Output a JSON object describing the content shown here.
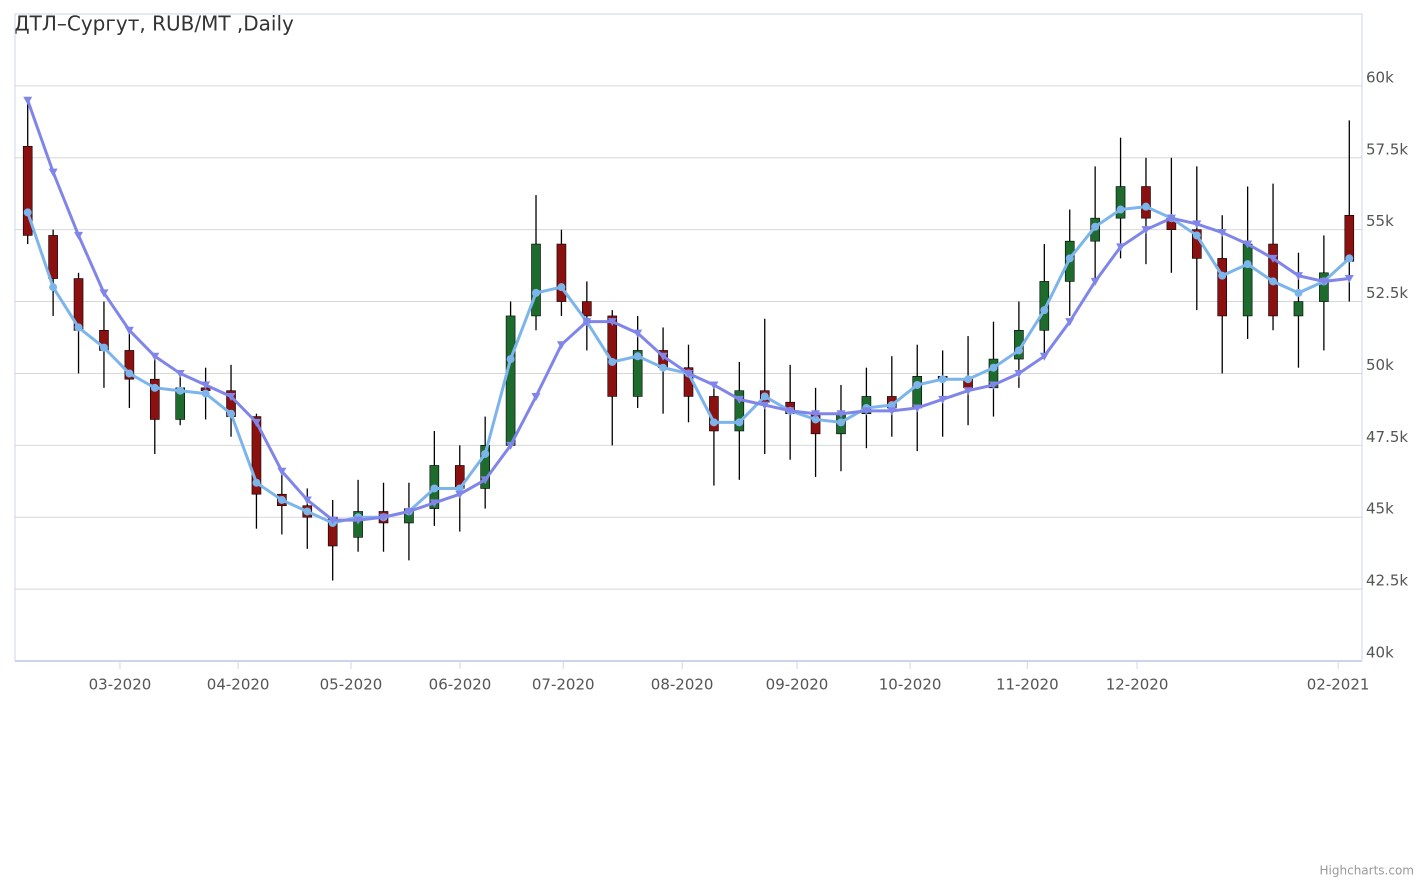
{
  "chart_data": {
    "type": "candlestick",
    "title": "ДТЛ–Сургут, RUB/MT ,Daily",
    "credits": "Highcharts.com",
    "categories": [
      null,
      null,
      null,
      null,
      null,
      null,
      null,
      null,
      null,
      null,
      null,
      null,
      null,
      null,
      null,
      null,
      null,
      null,
      null,
      null,
      null,
      null,
      null,
      null,
      null,
      null,
      null,
      null,
      null,
      null,
      null,
      null,
      null,
      null,
      null,
      null,
      null,
      null,
      null,
      null,
      null,
      null,
      null,
      null,
      null,
      null,
      null,
      null,
      null,
      null,
      null,
      null,
      null
    ],
    "open": [
      57900,
      54800,
      53300,
      51500,
      50800,
      49800,
      48400,
      49500,
      49400,
      48500,
      45800,
      45400,
      45000,
      44300,
      45200,
      44800,
      45300,
      46800,
      46000,
      47500,
      52000,
      54500,
      52500,
      52000,
      49200,
      50800,
      50200,
      49200,
      48000,
      49400,
      49000,
      48600,
      47900,
      48600,
      49200,
      48800,
      49900,
      49800,
      49500,
      50500,
      51500,
      53200,
      54600,
      55400,
      56500,
      55400,
      55000,
      54000,
      52000,
      54500,
      52000,
      52500,
      55500
    ],
    "high": [
      59500,
      55000,
      53500,
      52500,
      51500,
      50500,
      50000,
      50200,
      50300,
      48600,
      46600,
      46000,
      45600,
      46300,
      46200,
      46200,
      48000,
      47500,
      48500,
      52500,
      56200,
      55000,
      53200,
      52200,
      52000,
      51600,
      51000,
      49600,
      50400,
      51900,
      50300,
      49500,
      49600,
      50200,
      50600,
      51000,
      50800,
      51300,
      51800,
      52500,
      54500,
      55700,
      57200,
      58200,
      57500,
      57500,
      57200,
      55500,
      56500,
      56600,
      54200,
      54800,
      58800
    ],
    "low": [
      54500,
      52000,
      50000,
      49500,
      48800,
      47200,
      48200,
      48400,
      47800,
      44600,
      44400,
      43900,
      42800,
      43800,
      43800,
      43500,
      44700,
      44500,
      45300,
      47500,
      51500,
      52000,
      50800,
      47500,
      48800,
      48600,
      48300,
      46100,
      46300,
      47200,
      47000,
      46400,
      46600,
      47400,
      47800,
      47300,
      47800,
      48200,
      48500,
      49500,
      50500,
      52000,
      53200,
      54000,
      53800,
      53500,
      52200,
      50000,
      51200,
      51500,
      50200,
      50800,
      52500
    ],
    "close": [
      54800,
      53300,
      51500,
      50800,
      49800,
      48400,
      49500,
      49400,
      48500,
      45800,
      45400,
      45000,
      44000,
      45200,
      44800,
      45300,
      46800,
      46000,
      47500,
      52000,
      54500,
      52500,
      52000,
      49200,
      50800,
      50200,
      49200,
      48000,
      49400,
      49000,
      48600,
      47900,
      48600,
      49200,
      48800,
      49900,
      49800,
      49500,
      50500,
      51500,
      53200,
      54600,
      55400,
      56500,
      55400,
      55000,
      54000,
      52000,
      54500,
      52000,
      52500,
      53500,
      53900
    ],
    "up_color": "#1e6b2e",
    "down_color": "#8b1010",
    "moving_averages": [
      {
        "color": "#7cb5ec",
        "marker": "circle",
        "values": [
          55600,
          53000,
          51600,
          50900,
          50000,
          49500,
          49400,
          49300,
          48600,
          46200,
          45600,
          45200,
          44800,
          45000,
          45000,
          45200,
          46000,
          46000,
          47200,
          50500,
          52800,
          53000,
          51800,
          50400,
          50600,
          50200,
          50000,
          48300,
          48300,
          49200,
          48700,
          48400,
          48300,
          48800,
          48900,
          49600,
          49800,
          49800,
          50200,
          50800,
          52200,
          54000,
          55100,
          55700,
          55800,
          55400,
          54800,
          53400,
          53800,
          53200,
          52800,
          53200,
          54000
        ]
      },
      {
        "color": "#8085e9",
        "marker": "triangle-down",
        "values": [
          59500,
          57000,
          54800,
          52800,
          51500,
          50600,
          50000,
          49600,
          49200,
          48300,
          46600,
          45600,
          44900,
          44900,
          45000,
          45200,
          45500,
          45800,
          46300,
          47500,
          49200,
          51000,
          51800,
          51800,
          51400,
          50600,
          50000,
          49600,
          49100,
          48900,
          48700,
          48600,
          48600,
          48700,
          48700,
          48800,
          49100,
          49400,
          49600,
          50000,
          50600,
          51800,
          53200,
          54400,
          55000,
          55400,
          55200,
          54900,
          54500,
          54000,
          53400,
          53200,
          53300
        ]
      }
    ],
    "xlim": [
      0,
      53
    ],
    "xticks": [
      {
        "value": 4.13,
        "label": "03-2020"
      },
      {
        "value": 8.78,
        "label": "04-2020"
      },
      {
        "value": 13.22,
        "label": "05-2020"
      },
      {
        "value": 17.51,
        "label": "06-2020"
      },
      {
        "value": 21.57,
        "label": "07-2020"
      },
      {
        "value": 26.25,
        "label": "08-2020"
      },
      {
        "value": 30.77,
        "label": "09-2020"
      },
      {
        "value": 35.22,
        "label": "10-2020"
      },
      {
        "value": 39.83,
        "label": "11-2020"
      },
      {
        "value": 44.15,
        "label": "12-2020"
      },
      {
        "value": 52.06,
        "label": "02-2021"
      }
    ],
    "ylim": [
      40000,
      62500
    ],
    "yticks": [
      {
        "value": 40000,
        "label": "40k"
      },
      {
        "value": 42500,
        "label": "42.5k"
      },
      {
        "value": 45000,
        "label": "45k"
      },
      {
        "value": 47500,
        "label": "47.5k"
      },
      {
        "value": 50000,
        "label": "50k"
      },
      {
        "value": 52500,
        "label": "52.5k"
      },
      {
        "value": 55000,
        "label": "55k"
      },
      {
        "value": 57500,
        "label": "57.5k"
      },
      {
        "value": 60000,
        "label": "60k"
      }
    ],
    "grid": true
  }
}
